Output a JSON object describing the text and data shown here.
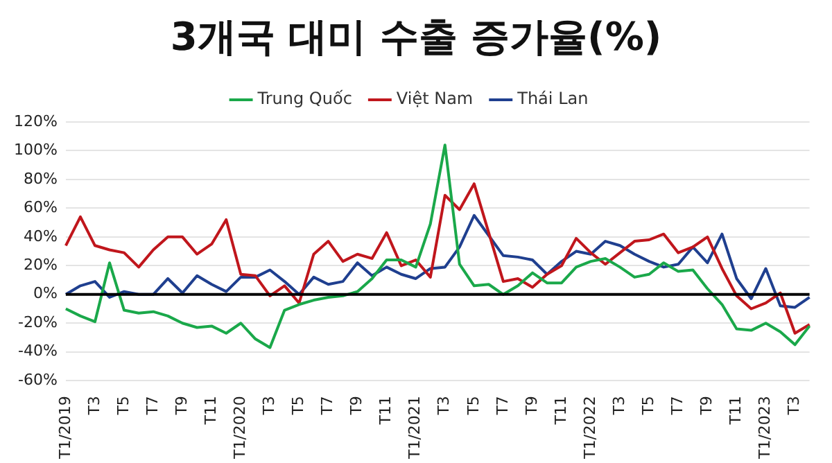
{
  "chart_data": {
    "type": "line",
    "title": "3개국 대미 수출 증가율(%)",
    "categories": [
      "T1/2019",
      null,
      "T3",
      null,
      "T5",
      null,
      "T7",
      null,
      "T9",
      null,
      "T11",
      null,
      "T1/2020",
      null,
      "T3",
      null,
      "T5",
      null,
      "T7",
      null,
      "T9",
      null,
      "T11",
      null,
      "T1/2021",
      null,
      "T3",
      null,
      "T5",
      null,
      "T7",
      null,
      "T9",
      null,
      "T11",
      null,
      "T1/2022",
      null,
      "T3",
      null,
      "T5",
      null,
      "T7",
      null,
      "T9",
      null,
      "T11",
      null,
      "T1/2023",
      null,
      "T3",
      null
    ],
    "series": [
      {
        "name": "Trung Quốc",
        "color": "#1aa84a",
        "values": [
          -10,
          -15,
          -19,
          22,
          -11,
          -13,
          -12,
          -15,
          -20,
          -23,
          -22,
          -27,
          -20,
          -31,
          -37,
          -11,
          -7,
          -4,
          -2,
          -1,
          2,
          11,
          24,
          24,
          19,
          49,
          104,
          21,
          6,
          7,
          0,
          6,
          15,
          8,
          8,
          19,
          23,
          25,
          19,
          12,
          14,
          22,
          16,
          17,
          4,
          -7,
          -24,
          -25,
          -20,
          -26,
          -35,
          -22
        ]
      },
      {
        "name": "Việt Nam",
        "color": "#c0161c",
        "values": [
          34,
          54,
          34,
          31,
          29,
          19,
          31,
          40,
          40,
          28,
          35,
          52,
          14,
          13,
          -1,
          6,
          -6,
          28,
          37,
          23,
          28,
          25,
          43,
          20,
          24,
          12,
          69,
          59,
          77,
          43,
          9,
          11,
          5,
          14,
          20,
          39,
          29,
          21,
          29,
          37,
          38,
          42,
          29,
          33,
          40,
          18,
          -1,
          -10,
          -6,
          1,
          -27,
          -21
        ]
      },
      {
        "name": "Thái Lan",
        "color": "#1f3f8f",
        "values": [
          0,
          6,
          9,
          -2,
          2,
          0,
          0,
          11,
          1,
          13,
          7,
          2,
          12,
          12,
          17,
          9,
          0,
          12,
          7,
          9,
          22,
          13,
          19,
          14,
          11,
          18,
          19,
          33,
          55,
          41,
          27,
          26,
          24,
          14,
          23,
          30,
          28,
          37,
          34,
          28,
          23,
          19,
          21,
          33,
          22,
          42,
          11,
          -3,
          18,
          -8,
          -9,
          -2
        ]
      }
    ],
    "ylim": [
      -60,
      120
    ],
    "yticks": [
      {
        "value": -60,
        "label": "-60%"
      },
      {
        "value": -40,
        "label": "-40%"
      },
      {
        "value": -20,
        "label": "-20%"
      },
      {
        "value": 0,
        "label": "0%"
      },
      {
        "value": 20,
        "label": "20%"
      },
      {
        "value": 40,
        "label": "40%"
      },
      {
        "value": 60,
        "label": "60%"
      },
      {
        "value": 80,
        "label": "80%"
      },
      {
        "value": 100,
        "label": "100%"
      },
      {
        "value": 120,
        "label": "120%"
      }
    ],
    "ref_lines": [
      {
        "axis": "y",
        "value": 0,
        "color": "#000000"
      }
    ],
    "grid": "y",
    "legend": "top",
    "marker": "none",
    "line_style": "solid"
  }
}
